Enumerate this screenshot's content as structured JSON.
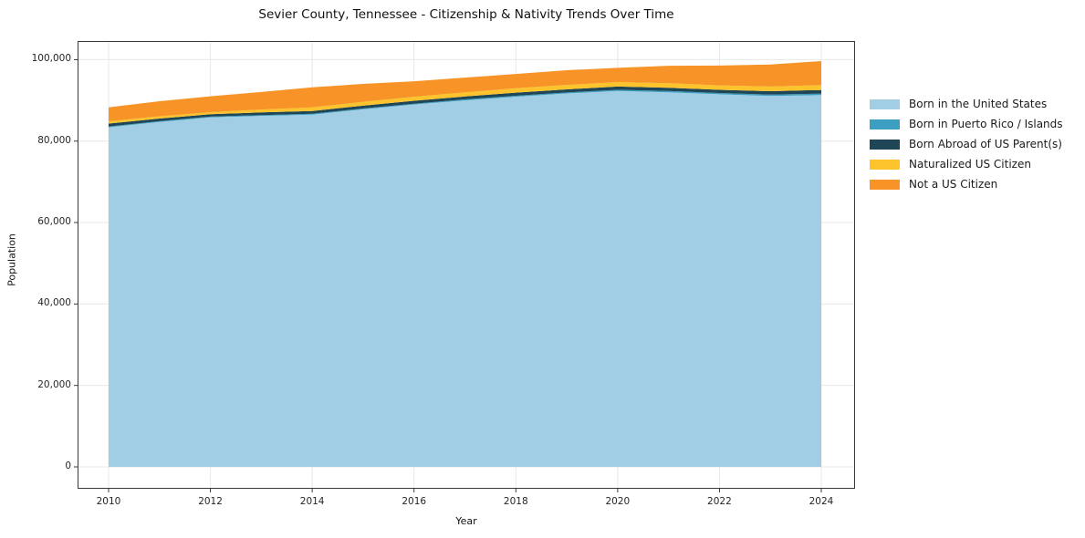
{
  "chart_data": {
    "type": "area",
    "stacked": true,
    "title": "Sevier County, Tennessee - Citizenship & Nativity Trends Over Time",
    "xlabel": "Year",
    "ylabel": "Population",
    "x": [
      2010,
      2011,
      2012,
      2013,
      2014,
      2015,
      2016,
      2017,
      2018,
      2019,
      2020,
      2021,
      2022,
      2023,
      2024
    ],
    "series": [
      {
        "name": "Born in the United States",
        "color": "#a2cee5",
        "values": [
          83400,
          84700,
          85800,
          86200,
          86500,
          87800,
          89000,
          90000,
          90900,
          91700,
          92300,
          92000,
          91500,
          91100,
          91300
        ]
      },
      {
        "name": "Born in Puerto Rico / Islands",
        "color": "#3c9fc1",
        "values": [
          200,
          200,
          200,
          200,
          200,
          200,
          200,
          250,
          250,
          250,
          300,
          300,
          300,
          300,
          350
        ]
      },
      {
        "name": "Born Abroad of US Parent(s)",
        "color": "#1f4656",
        "values": [
          700,
          650,
          600,
          650,
          700,
          700,
          700,
          700,
          750,
          750,
          800,
          800,
          800,
          850,
          900
        ]
      },
      {
        "name": "Naturalized US Citizen",
        "color": "#fcc32d",
        "values": [
          600,
          550,
          500,
          700,
          900,
          950,
          1000,
          1050,
          1100,
          1100,
          1100,
          1100,
          1100,
          1150,
          1200
        ]
      },
      {
        "name": "Not a US Citizen",
        "color": "#f79327",
        "values": [
          3400,
          3700,
          3900,
          4300,
          4900,
          4400,
          3800,
          3600,
          3500,
          3600,
          3500,
          4300,
          4850,
          5400,
          5900
        ]
      }
    ],
    "xticks": [
      2010,
      2012,
      2014,
      2016,
      2018,
      2020,
      2022,
      2024
    ],
    "yticks": [
      0,
      20000,
      40000,
      60000,
      80000,
      100000
    ],
    "xlim": [
      2009.4,
      2024.66
    ],
    "ylim": [
      0,
      104600
    ],
    "grid": true,
    "grid_color": "#e8e8e8",
    "axis_color": "#3a3a3a",
    "background": "#ffffff",
    "legend_position": "right"
  }
}
